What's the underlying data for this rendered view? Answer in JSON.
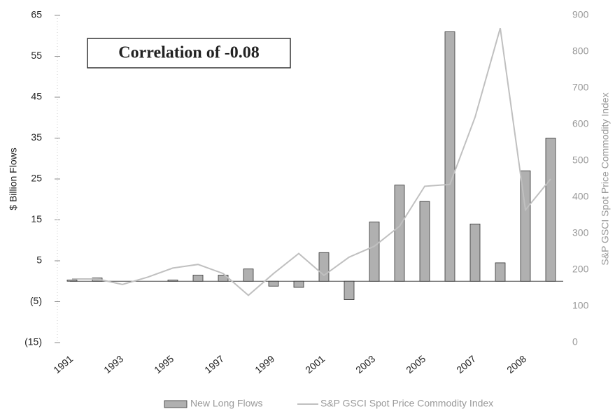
{
  "chart_data": {
    "type": "bar_line",
    "annotation": "Correlation of -0.08",
    "ylabel": "$ Billion Flows",
    "y2label": "S&P GSCI Spot Price Commodity Index",
    "categories": [
      "1991",
      null,
      "1993",
      null,
      "1995",
      null,
      "1997",
      null,
      "1999",
      null,
      "2001",
      null,
      "2003",
      null,
      "2005",
      null,
      "2007",
      null,
      "2008",
      null
    ],
    "series": [
      {
        "name": "New Long Flows",
        "type": "bar",
        "color": "#b0b0b0",
        "values": [
          0.3,
          0.8,
          0,
          0,
          0.3,
          1.5,
          1.5,
          3,
          -1.2,
          -1.5,
          7,
          -4.5,
          14.5,
          23.5,
          19.5,
          61,
          14,
          4.5,
          27,
          35
        ]
      },
      {
        "name": "S&P GSCI Spot Price Commodity Index",
        "type": "line",
        "axis": "y2",
        "color": "#c0c0c0",
        "values": [
          175,
          175,
          160,
          180,
          205,
          215,
          190,
          130,
          190,
          245,
          185,
          235,
          265,
          320,
          430,
          435,
          620,
          865,
          365,
          450
        ]
      }
    ],
    "ylim": [
      -15,
      65
    ],
    "yticks": [
      {
        "value": -15,
        "label": "(15)"
      },
      {
        "value": -5,
        "label": "(5)"
      },
      5,
      15,
      25,
      35,
      45,
      55,
      65
    ],
    "y2lim": [
      0,
      900
    ],
    "y2ticks": [
      0,
      100,
      200,
      300,
      400,
      500,
      600,
      700,
      800,
      900
    ]
  }
}
